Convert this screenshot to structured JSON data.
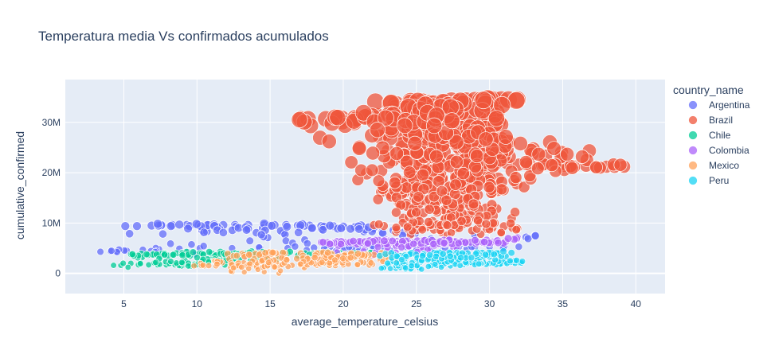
{
  "chart_data": {
    "type": "scatter",
    "title": "Temperatura media Vs confirmados acumulados",
    "xlabel": "average_temperature_celsius",
    "ylabel": "cumulative_confirmed",
    "xlim": [
      1,
      42
    ],
    "ylim": [
      -4000000,
      38500000
    ],
    "x_ticks": [
      5,
      10,
      15,
      20,
      25,
      30,
      35,
      40
    ],
    "x_tick_labels": [
      "5",
      "10",
      "15",
      "20",
      "25",
      "30",
      "35",
      "40"
    ],
    "y_ticks": [
      0,
      10000000,
      20000000,
      30000000
    ],
    "y_tick_labels": [
      "0",
      "10M",
      "20M",
      "30M"
    ],
    "grid": true,
    "plot_background": "#e5ecf6",
    "legend_title": "country_name",
    "legend_position": "right",
    "series": [
      {
        "name": "Argentina",
        "color": "#636efa",
        "point_count": 180,
        "points": [
          [
            3.4,
            4.3
          ],
          [
            4.1,
            4.4
          ],
          [
            4.5,
            4.4
          ],
          [
            5.2,
            4.5
          ],
          [
            6.3,
            4.7
          ],
          [
            7.4,
            4.8
          ],
          [
            8.8,
            4.9
          ],
          [
            10.2,
            5.0
          ],
          [
            12.4,
            5.0
          ],
          [
            14.3,
            5.1
          ],
          [
            16.2,
            5.0
          ],
          [
            18.0,
            5.1
          ],
          [
            20.1,
            5.2
          ],
          [
            22.1,
            5.2
          ],
          [
            24.3,
            5.3
          ],
          [
            26.0,
            5.3
          ],
          [
            27.9,
            5.3
          ],
          [
            29.0,
            5.2
          ],
          [
            30.0,
            5.3
          ],
          [
            31.0,
            5.3
          ],
          [
            32.0,
            5.3
          ],
          [
            32.5,
            7.2
          ],
          [
            33.1,
            7.5
          ],
          [
            5.1,
            9.4
          ],
          [
            5.9,
            9.4
          ],
          [
            6.9,
            9.5
          ],
          [
            7.5,
            9.5
          ],
          [
            8.3,
            9.6
          ],
          [
            9.3,
            9.6
          ],
          [
            10.1,
            9.6
          ],
          [
            10.8,
            9.6
          ],
          [
            11.8,
            9.6
          ],
          [
            12.6,
            9.6
          ],
          [
            13.5,
            9.6
          ],
          [
            14.6,
            9.6
          ],
          [
            15.3,
            9.6
          ],
          [
            16.1,
            9.6
          ],
          [
            16.9,
            9.5
          ],
          [
            17.7,
            9.5
          ],
          [
            18.5,
            9.4
          ],
          [
            19.3,
            9.4
          ],
          [
            20.0,
            9.3
          ],
          [
            20.8,
            9.2
          ],
          [
            21.4,
            9.1
          ],
          [
            22.1,
            9.0
          ],
          [
            15.9,
            8.0
          ],
          [
            23.8,
            8.2
          ],
          [
            24.8,
            8.0
          ],
          [
            9.8,
            4.0
          ],
          [
            11.5,
            3.0
          ],
          [
            13.2,
            3.2
          ],
          [
            17.5,
            3.5
          ],
          [
            19.5,
            4.4
          ],
          [
            21.0,
            4.7
          ]
        ]
      },
      {
        "name": "Brazil",
        "color": "#ef553b",
        "point_count": 620,
        "points": [
          [
            17.1,
            30.7
          ],
          [
            17.6,
            30.7
          ],
          [
            18.8,
            30.7
          ],
          [
            19.9,
            30.8
          ],
          [
            20.8,
            30.9
          ],
          [
            21.8,
            31.1
          ],
          [
            22.3,
            31.3
          ],
          [
            23.2,
            31.5
          ],
          [
            22.2,
            34.1
          ],
          [
            23.6,
            33.6
          ],
          [
            24.6,
            34.2
          ],
          [
            25.4,
            34.1
          ],
          [
            25.9,
            33.8
          ],
          [
            26.4,
            33.4
          ],
          [
            26.9,
            33.9
          ],
          [
            27.4,
            34.3
          ],
          [
            27.9,
            34.0
          ],
          [
            28.4,
            34.3
          ],
          [
            29.0,
            34.4
          ],
          [
            29.4,
            34.4
          ],
          [
            29.8,
            34.5
          ],
          [
            30.3,
            34.5
          ],
          [
            30.8,
            34.5
          ],
          [
            31.3,
            34.5
          ],
          [
            31.9,
            34.5
          ],
          [
            30.6,
            30.2
          ],
          [
            29.5,
            30.3
          ],
          [
            28.3,
            31.0
          ],
          [
            27.3,
            31.5
          ],
          [
            26.2,
            32.2
          ],
          [
            25.1,
            32.4
          ],
          [
            24.3,
            31.8
          ],
          [
            23.6,
            32.9
          ],
          [
            24.9,
            30.2
          ],
          [
            25.7,
            29.2
          ],
          [
            26.6,
            30.4
          ],
          [
            27.6,
            29.6
          ],
          [
            28.6,
            29.2
          ],
          [
            29.7,
            28.1
          ],
          [
            30.4,
            27.5
          ],
          [
            30.9,
            26.3
          ],
          [
            30.4,
            24.5
          ],
          [
            29.2,
            24.8
          ],
          [
            28.1,
            26.0
          ],
          [
            27.1,
            27.1
          ],
          [
            26.2,
            27.4
          ],
          [
            25.3,
            27.6
          ],
          [
            24.4,
            28.0
          ],
          [
            24.1,
            25.1
          ],
          [
            25.0,
            24.0
          ],
          [
            25.8,
            25.7
          ],
          [
            26.8,
            25.9
          ],
          [
            28.0,
            24.6
          ],
          [
            29.0,
            23.7
          ],
          [
            30.0,
            23.1
          ],
          [
            31.0,
            22.9
          ],
          [
            23.4,
            22.5
          ],
          [
            24.3,
            22.4
          ],
          [
            25.3,
            21.6
          ],
          [
            26.3,
            22.8
          ],
          [
            27.3,
            22.4
          ],
          [
            28.3,
            21.9
          ],
          [
            29.2,
            21.3
          ],
          [
            30.2,
            21.6
          ],
          [
            31.2,
            21.9
          ],
          [
            32.0,
            21.6
          ],
          [
            32.8,
            21.4
          ],
          [
            33.6,
            21.5
          ],
          [
            34.4,
            21.4
          ],
          [
            35.1,
            21.4
          ],
          [
            35.8,
            21.3
          ],
          [
            36.6,
            21.4
          ],
          [
            37.3,
            21.2
          ],
          [
            38.0,
            21.2
          ],
          [
            39.2,
            21.2
          ],
          [
            21.6,
            19.8
          ],
          [
            21.0,
            18.6
          ],
          [
            22.6,
            16.2
          ],
          [
            23.9,
            18.2
          ],
          [
            24.8,
            19.8
          ],
          [
            25.8,
            19.1
          ],
          [
            26.8,
            18.5
          ],
          [
            27.8,
            18.3
          ],
          [
            28.8,
            18.8
          ],
          [
            29.9,
            18.4
          ],
          [
            30.6,
            18.9
          ],
          [
            31.5,
            20.3
          ],
          [
            24.2,
            16.1
          ],
          [
            25.2,
            15.6
          ],
          [
            26.2,
            16.4
          ],
          [
            27.2,
            15.9
          ],
          [
            28.2,
            15.1
          ],
          [
            29.2,
            15.6
          ],
          [
            30.3,
            16.2
          ],
          [
            23.8,
            13.9
          ],
          [
            24.9,
            13.1
          ],
          [
            25.9,
            13.3
          ],
          [
            26.9,
            12.6
          ],
          [
            27.9,
            13.1
          ],
          [
            29.0,
            13.5
          ],
          [
            30.2,
            12.5
          ],
          [
            24.1,
            11.0
          ],
          [
            25.1,
            11.4
          ],
          [
            26.1,
            10.4
          ],
          [
            27.0,
            11.0
          ],
          [
            28.0,
            10.6
          ],
          [
            29.1,
            10.8
          ],
          [
            24.8,
            8.8
          ],
          [
            25.7,
            9.2
          ],
          [
            26.7,
            8.2
          ],
          [
            27.7,
            8.9
          ],
          [
            28.8,
            8.5
          ],
          [
            29.8,
            8.8
          ],
          [
            30.8,
            8.1
          ],
          [
            31.9,
            8.9
          ],
          [
            22.1,
            9.6
          ],
          [
            23.6,
            8.2
          ],
          [
            24.6,
            7.7
          ],
          [
            27.1,
            7.6
          ],
          [
            29.4,
            7.8
          ]
        ]
      },
      {
        "name": "Chile",
        "color": "#00cc96",
        "point_count": 160,
        "points": [
          [
            4.3,
            1.6
          ],
          [
            4.8,
            1.6
          ],
          [
            6.0,
            1.7
          ],
          [
            6.7,
            1.7
          ],
          [
            7.3,
            1.7
          ],
          [
            7.9,
            1.7
          ],
          [
            8.5,
            1.7
          ],
          [
            9.1,
            1.7
          ],
          [
            9.7,
            1.7
          ],
          [
            10.3,
            1.6
          ],
          [
            5.5,
            3.8
          ],
          [
            6.2,
            3.9
          ],
          [
            7.0,
            3.9
          ],
          [
            7.8,
            4.0
          ],
          [
            8.6,
            4.0
          ],
          [
            9.4,
            4.0
          ],
          [
            10.2,
            4.0
          ],
          [
            11.0,
            4.0
          ],
          [
            11.8,
            4.0
          ],
          [
            12.6,
            4.0
          ],
          [
            13.4,
            4.0
          ],
          [
            14.2,
            4.0
          ],
          [
            15.0,
            4.0
          ],
          [
            16.2,
            4.0
          ],
          [
            17.4,
            4.0
          ],
          [
            18.6,
            4.0
          ],
          [
            19.8,
            4.0
          ],
          [
            20.8,
            4.0
          ],
          [
            21.8,
            4.0
          ],
          [
            22.8,
            3.9
          ],
          [
            10.5,
            2.4
          ],
          [
            11.5,
            2.5
          ],
          [
            12.5,
            2.6
          ],
          [
            13.7,
            2.7
          ],
          [
            14.9,
            2.8
          ]
        ]
      },
      {
        "name": "Colombia",
        "color": "#ab63fa",
        "point_count": 140,
        "points": [
          [
            18.5,
            6.2
          ],
          [
            19.3,
            6.1
          ],
          [
            20.1,
            6.2
          ],
          [
            20.9,
            6.2
          ],
          [
            21.7,
            6.2
          ],
          [
            22.5,
            6.2
          ],
          [
            23.3,
            6.2
          ],
          [
            24.0,
            6.2
          ],
          [
            24.8,
            6.1
          ],
          [
            25.5,
            6.2
          ],
          [
            26.3,
            6.2
          ],
          [
            27.1,
            6.2
          ],
          [
            27.9,
            6.2
          ],
          [
            28.7,
            6.2
          ],
          [
            29.5,
            6.2
          ],
          [
            30.3,
            6.3
          ],
          [
            31.1,
            6.3
          ],
          [
            31.9,
            7.1
          ],
          [
            21.5,
            5.6
          ],
          [
            23.0,
            5.4
          ],
          [
            24.5,
            5.3
          ],
          [
            26.0,
            4.9
          ],
          [
            19.8,
            3.5
          ],
          [
            22.3,
            3.9
          ]
        ]
      },
      {
        "name": "Mexico",
        "color": "#ffa15a",
        "point_count": 220,
        "points": [
          [
            9.8,
            1.5
          ],
          [
            10.5,
            1.5
          ],
          [
            11.3,
            1.5
          ],
          [
            12.3,
            1.2
          ],
          [
            13.0,
            1.5
          ],
          [
            14.1,
            1.3
          ],
          [
            14.8,
            1.5
          ],
          [
            15.5,
            1.4
          ],
          [
            16.5,
            1.6
          ],
          [
            17.3,
            1.5
          ],
          [
            18.2,
            1.6
          ],
          [
            19.1,
            1.7
          ],
          [
            20.0,
            1.7
          ],
          [
            21.0,
            1.7
          ],
          [
            22.0,
            1.8
          ],
          [
            15.6,
            0.0
          ],
          [
            12.4,
            0.3
          ],
          [
            14.6,
            0.3
          ],
          [
            13.2,
            2.1
          ],
          [
            15.2,
            2.4
          ],
          [
            17.6,
            2.6
          ],
          [
            19.4,
            2.6
          ],
          [
            12.1,
            3.9
          ],
          [
            13.1,
            3.9
          ],
          [
            14.0,
            3.9
          ],
          [
            15.0,
            4.0
          ],
          [
            16.0,
            4.0
          ],
          [
            17.1,
            4.0
          ],
          [
            18.1,
            3.9
          ],
          [
            19.0,
            3.9
          ],
          [
            20.1,
            3.8
          ],
          [
            21.1,
            3.7
          ],
          [
            22.1,
            3.7
          ],
          [
            23.0,
            3.6
          ],
          [
            24.0,
            3.5
          ],
          [
            16.0,
            3.0
          ],
          [
            18.6,
            3.1
          ],
          [
            20.6,
            3.0
          ],
          [
            22.5,
            2.8
          ],
          [
            23.7,
            2.6
          ],
          [
            14.5,
            2.8
          ],
          [
            11.2,
            2.5
          ]
        ]
      },
      {
        "name": "Peru",
        "color": "#19d3f3",
        "point_count": 200,
        "points": [
          [
            22.8,
            1.2
          ],
          [
            23.6,
            1.0
          ],
          [
            24.4,
            1.1
          ],
          [
            25.2,
            1.2
          ],
          [
            26.0,
            1.4
          ],
          [
            26.8,
            1.5
          ],
          [
            27.6,
            1.8
          ],
          [
            28.4,
            1.9
          ],
          [
            29.2,
            2.0
          ],
          [
            30.0,
            2.0
          ],
          [
            30.8,
            2.1
          ],
          [
            31.6,
            2.2
          ],
          [
            32.0,
            2.2
          ],
          [
            23.2,
            2.2
          ],
          [
            24.2,
            2.3
          ],
          [
            25.3,
            2.3
          ],
          [
            26.2,
            2.2
          ],
          [
            27.1,
            2.3
          ],
          [
            28.1,
            2.4
          ],
          [
            29.1,
            2.5
          ],
          [
            22.5,
            3.5
          ],
          [
            23.5,
            3.7
          ],
          [
            24.5,
            3.8
          ],
          [
            25.5,
            3.9
          ],
          [
            26.5,
            4.0
          ],
          [
            27.5,
            4.0
          ],
          [
            28.5,
            4.0
          ],
          [
            29.5,
            4.1
          ],
          [
            30.5,
            4.1
          ],
          [
            31.5,
            4.1
          ],
          [
            24.0,
            3.0
          ],
          [
            26.0,
            3.2
          ],
          [
            28.0,
            3.3
          ],
          [
            30.0,
            3.3
          ]
        ]
      }
    ]
  }
}
